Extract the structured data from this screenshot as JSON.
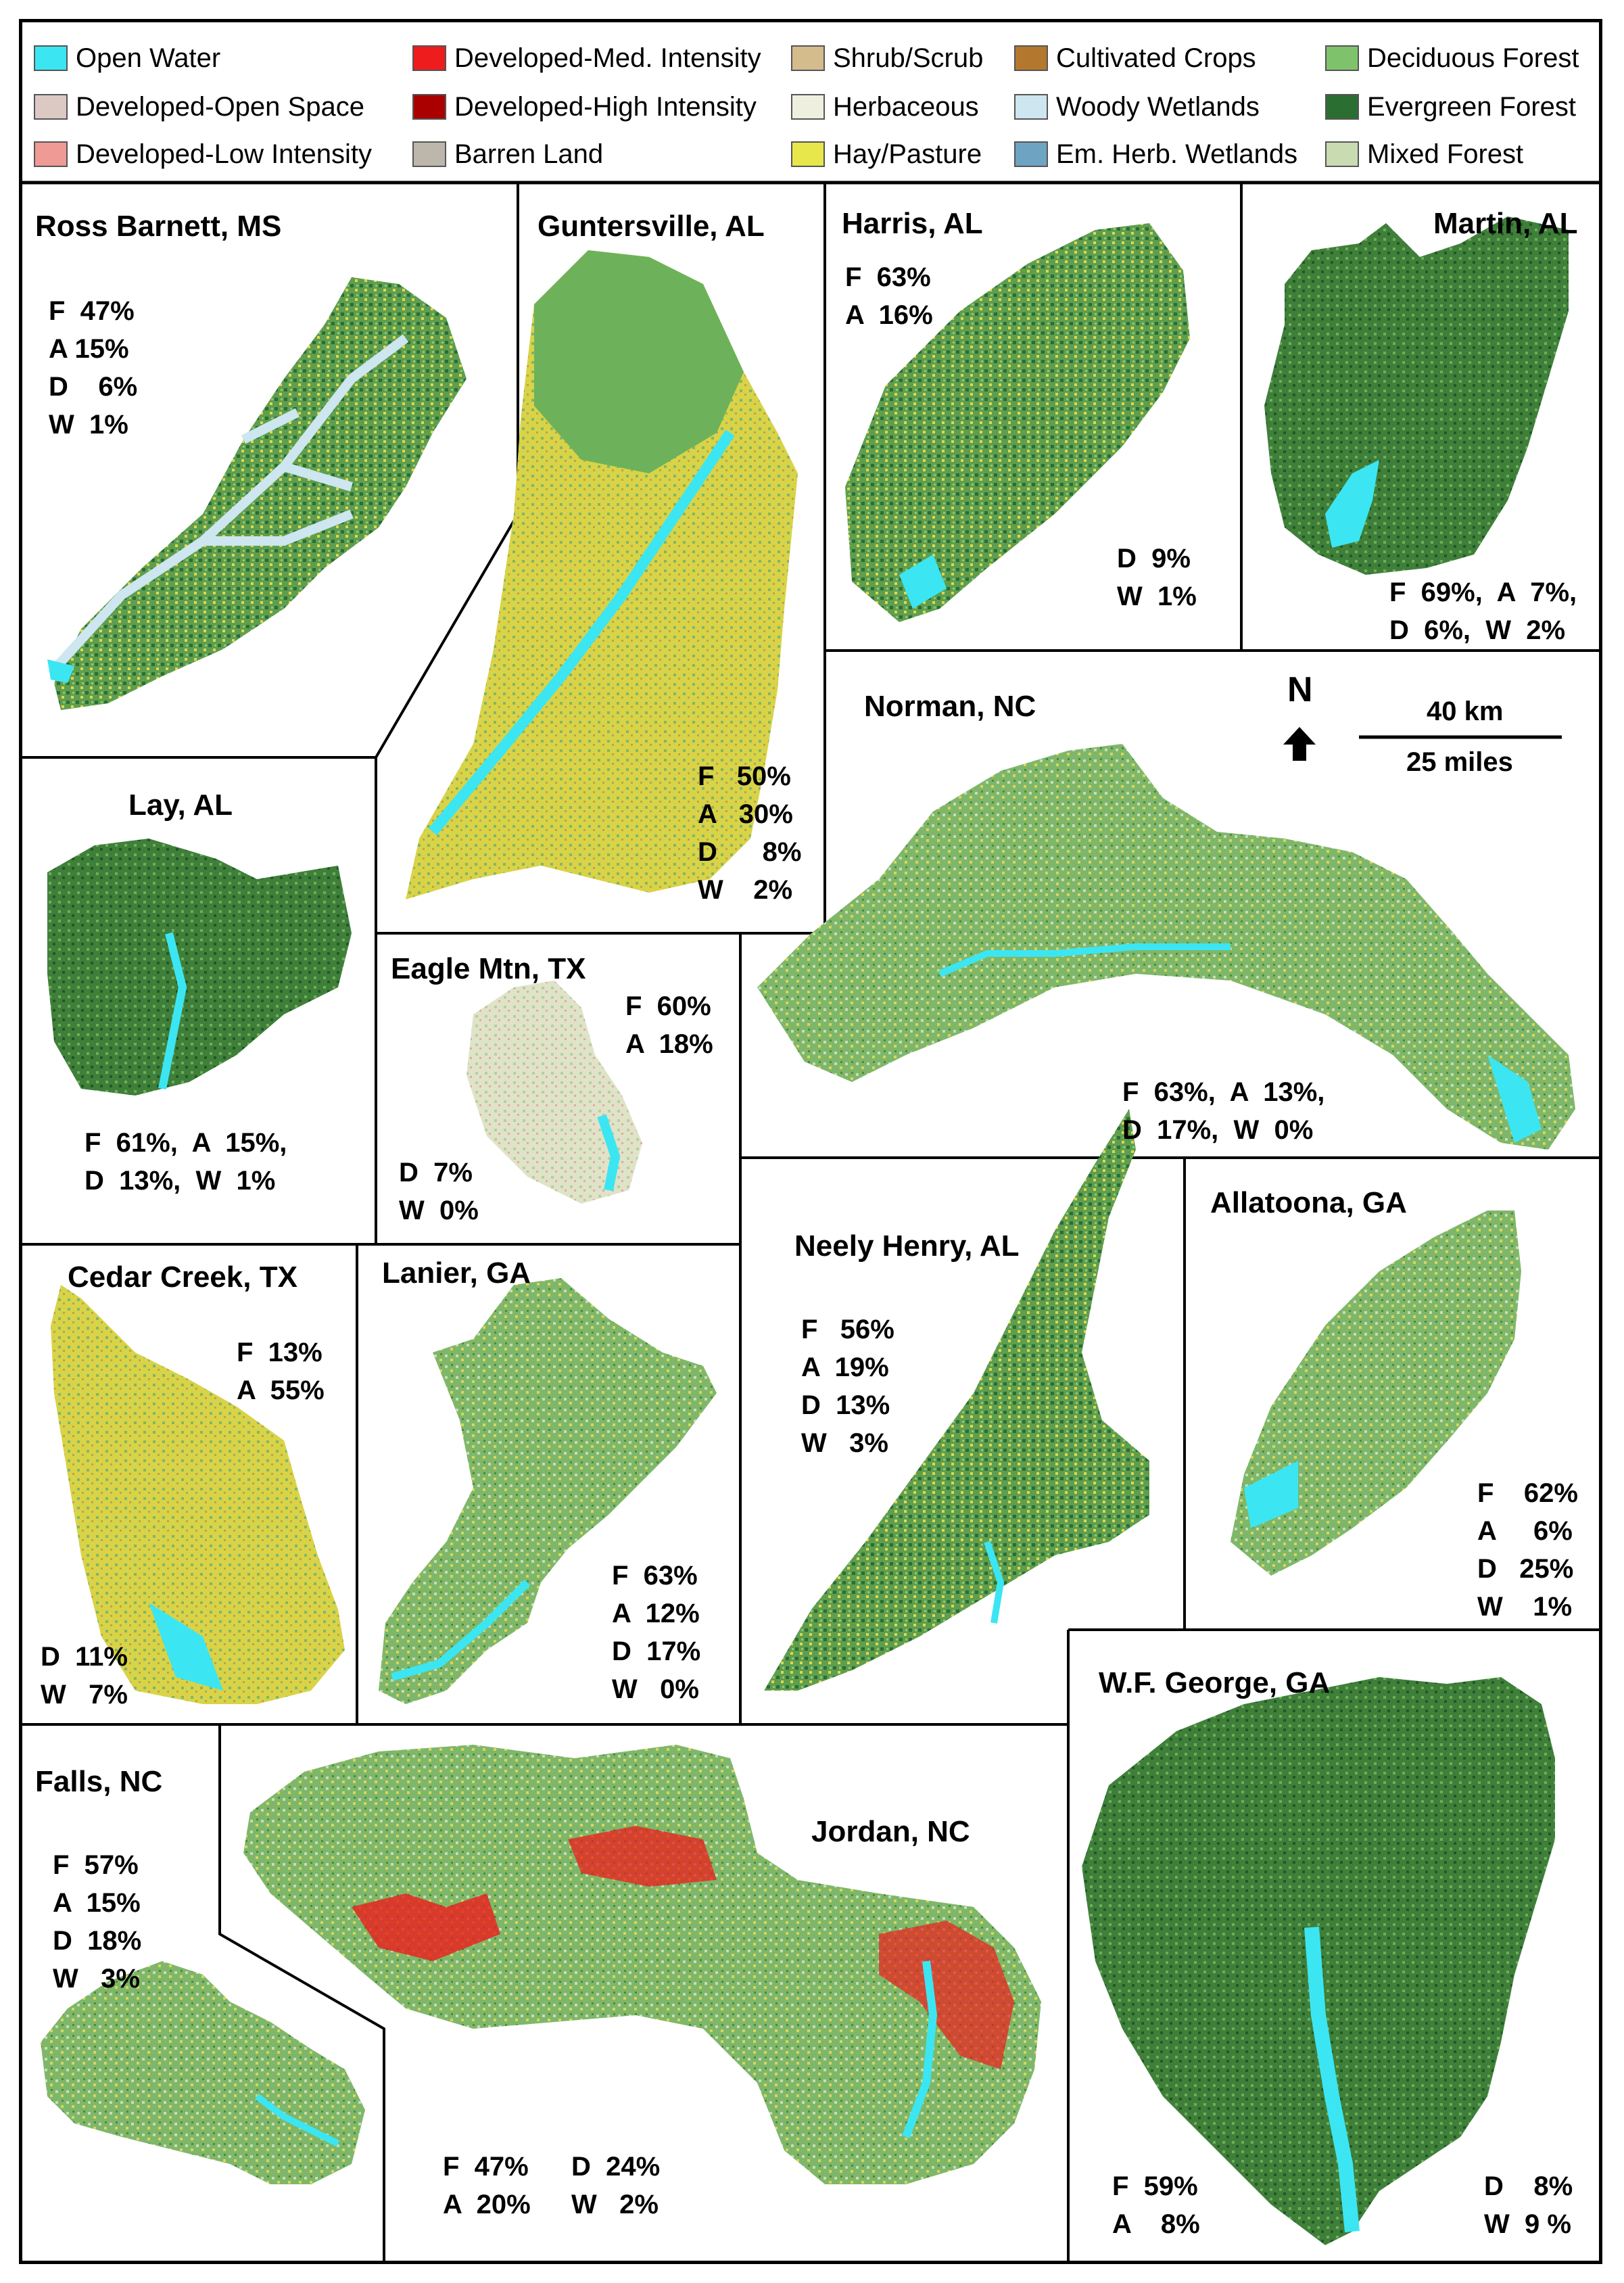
{
  "legend": [
    {
      "label": "Open Water",
      "color": "#3be6f2"
    },
    {
      "label": "Developed-Open Space",
      "color": "#dcc9c4"
    },
    {
      "label": "Developed-Low Intensity",
      "color": "#ef9a95"
    },
    {
      "label": "Developed-Med. Intensity",
      "color": "#ee1c1c"
    },
    {
      "label": "Developed-High Intensity",
      "color": "#ab0000"
    },
    {
      "label": "Barren Land",
      "color": "#bdb7ab"
    },
    {
      "label": "Shrub/Scrub",
      "color": "#d4bc8c"
    },
    {
      "label": "Herbaceous",
      "color": "#efefe0"
    },
    {
      "label": "Hay/Pasture",
      "color": "#e7e64b"
    },
    {
      "label": "Cultivated Crops",
      "color": "#b3782e"
    },
    {
      "label": "Woody Wetlands",
      "color": "#cde6ef"
    },
    {
      "label": "Em. Herb. Wetlands",
      "color": "#6fa3c2"
    },
    {
      "label": "Deciduous Forest",
      "color": "#7fc26c"
    },
    {
      "label": "Evergreen Forest",
      "color": "#2b6e32"
    },
    {
      "label": "Mixed Forest",
      "color": "#c9dcb1"
    }
  ],
  "watersheds": [
    {
      "name": "Ross Barnett, MS",
      "stats": "F  47%\nA 15%\nD    6%\nW  1%"
    },
    {
      "name": "Guntersville, AL",
      "stats": "F   50%\nA   30%\nD      8%\nW    2%"
    },
    {
      "name": "Harris, AL",
      "stats_top": "F  63%\nA  16%",
      "stats_bottom": "D  9%\nW  1%"
    },
    {
      "name": "Martin, AL",
      "stats": "F  69%,  A  7%,\nD  6%,  W  2%"
    },
    {
      "name": "Lay, AL",
      "stats": "F  61%,  A  15%,\nD  13%,  W  1%"
    },
    {
      "name": "Norman, NC",
      "stats": "F  63%,  A  13%,\nD  17%,  W  0%"
    },
    {
      "name": "Eagle Mtn, TX",
      "stats_top": "F  60%\nA  18%",
      "stats_bottom": "D  7%\nW  0%"
    },
    {
      "name": "Cedar Creek, TX",
      "stats_top": "F  13%\nA  55%",
      "stats_bottom": "D  11%\nW   7%"
    },
    {
      "name": "Lanier, GA",
      "stats": "F  63%\nA  12%\nD  17%\nW   0%"
    },
    {
      "name": "Neely Henry, AL",
      "stats": "F   56%\nA  19%\nD  13%\nW   3%"
    },
    {
      "name": "Allatoona, GA",
      "stats": "F    62%\nA     6%\nD   25%\nW    1%"
    },
    {
      "name": "W.F. George, GA",
      "stats_left": "F  59%\nA    8%",
      "stats_right": "D    8%\nW  9 %"
    },
    {
      "name": "Falls, NC",
      "stats": "F  57%\nA  15%\nD  18%\nW   3%"
    },
    {
      "name": "Jordan, NC",
      "stats_left": "F  47%\nA  20%",
      "stats_right": "D  24%\nW   2%"
    }
  ],
  "north": {
    "label": "N"
  },
  "scale": {
    "top": "40 km",
    "bottom": "25 miles"
  }
}
